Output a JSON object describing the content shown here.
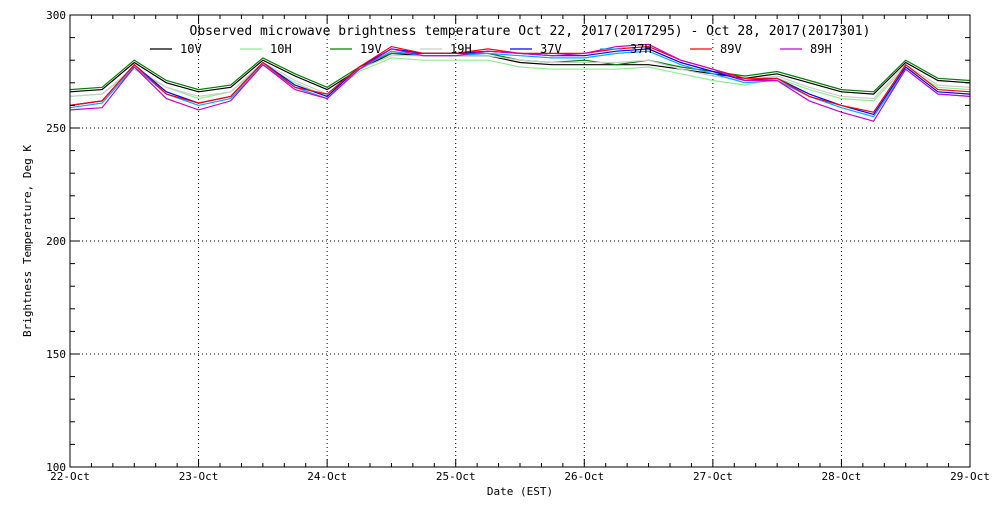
{
  "chart_data": {
    "type": "line",
    "title": "Observed microwave brightness temperature Oct 22, 2017(2017295) - Oct 28, 2017(2017301)",
    "xlabel": "Date (EST)",
    "ylabel": "Brightness Temperature, Deg K",
    "xlim": [
      "22-Oct",
      "29-Oct"
    ],
    "ylim": [
      100,
      300
    ],
    "x_ticks": [
      "22-Oct",
      "23-Oct",
      "24-Oct",
      "25-Oct",
      "26-Oct",
      "27-Oct",
      "28-Oct",
      "29-Oct"
    ],
    "y_ticks": [
      100,
      150,
      200,
      250,
      300
    ],
    "grid": true,
    "legend_position": "top",
    "x": [
      "22-Oct 00:00",
      "22-Oct 06:00",
      "22-Oct 12:00",
      "22-Oct 18:00",
      "23-Oct 00:00",
      "23-Oct 06:00",
      "23-Oct 12:00",
      "23-Oct 18:00",
      "24-Oct 00:00",
      "24-Oct 06:00",
      "24-Oct 12:00",
      "24-Oct 18:00",
      "25-Oct 00:00",
      "25-Oct 06:00",
      "25-Oct 12:00",
      "25-Oct 18:00",
      "26-Oct 00:00",
      "26-Oct 06:00",
      "26-Oct 12:00",
      "26-Oct 18:00",
      "27-Oct 00:00",
      "27-Oct 06:00",
      "27-Oct 12:00",
      "27-Oct 18:00",
      "28-Oct 00:00",
      "28-Oct 06:00",
      "28-Oct 12:00",
      "28-Oct 18:00",
      "29-Oct 00:00"
    ],
    "series": [
      {
        "name": "10V",
        "color": "#000000",
        "values": [
          266,
          267,
          279,
          270,
          266,
          268,
          280,
          273,
          267,
          276,
          283,
          282,
          282,
          282,
          279,
          278,
          278,
          278,
          278,
          276,
          274,
          272,
          274,
          270,
          266,
          265,
          279,
          271,
          270
        ]
      },
      {
        "name": "10H",
        "color": "#90ee90",
        "values": [
          264,
          265,
          276,
          268,
          263,
          266,
          278,
          270,
          264,
          275,
          281,
          280,
          280,
          280,
          277,
          276,
          276,
          276,
          277,
          274,
          271,
          269,
          272,
          267,
          263,
          262,
          277,
          268,
          267
        ]
      },
      {
        "name": "19V",
        "color": "#008000",
        "values": [
          267,
          268,
          280,
          271,
          267,
          269,
          281,
          274,
          268,
          277,
          283,
          283,
          283,
          283,
          280,
          279,
          280,
          278,
          280,
          277,
          275,
          273,
          275,
          271,
          267,
          266,
          280,
          272,
          271
        ]
      },
      {
        "name": "19H",
        "color": "#cccccc",
        "values": [
          264,
          265,
          277,
          268,
          264,
          266,
          279,
          271,
          265,
          276,
          282,
          282,
          282,
          282,
          280,
          279,
          279,
          279,
          280,
          276,
          273,
          271,
          273,
          268,
          264,
          263,
          278,
          269,
          268
        ]
      },
      {
        "name": "37V",
        "color": "#0000ff",
        "values": [
          260,
          262,
          278,
          266,
          261,
          264,
          279,
          269,
          264,
          277,
          285,
          283,
          283,
          284,
          283,
          282,
          282,
          284,
          285,
          279,
          275,
          271,
          272,
          265,
          260,
          256,
          277,
          266,
          265
        ]
      },
      {
        "name": "37H",
        "color": "#00aaff",
        "values": [
          259,
          261,
          277,
          265,
          260,
          263,
          278,
          268,
          263,
          276,
          284,
          282,
          282,
          283,
          282,
          281,
          281,
          283,
          284,
          278,
          274,
          270,
          271,
          264,
          259,
          255,
          276,
          265,
          264
        ]
      },
      {
        "name": "89V",
        "color": "#ff0000",
        "values": [
          260,
          262,
          278,
          265,
          261,
          264,
          279,
          268,
          265,
          277,
          286,
          283,
          283,
          285,
          283,
          283,
          283,
          285,
          286,
          280,
          276,
          272,
          272,
          264,
          260,
          257,
          278,
          267,
          266
        ]
      },
      {
        "name": "89H",
        "color": "#cc00cc",
        "values": [
          258,
          259,
          277,
          263,
          258,
          262,
          278,
          267,
          263,
          276,
          285,
          282,
          282,
          284,
          283,
          282,
          283,
          286,
          287,
          280,
          276,
          271,
          271,
          262,
          257,
          253,
          276,
          265,
          264
        ]
      }
    ]
  }
}
